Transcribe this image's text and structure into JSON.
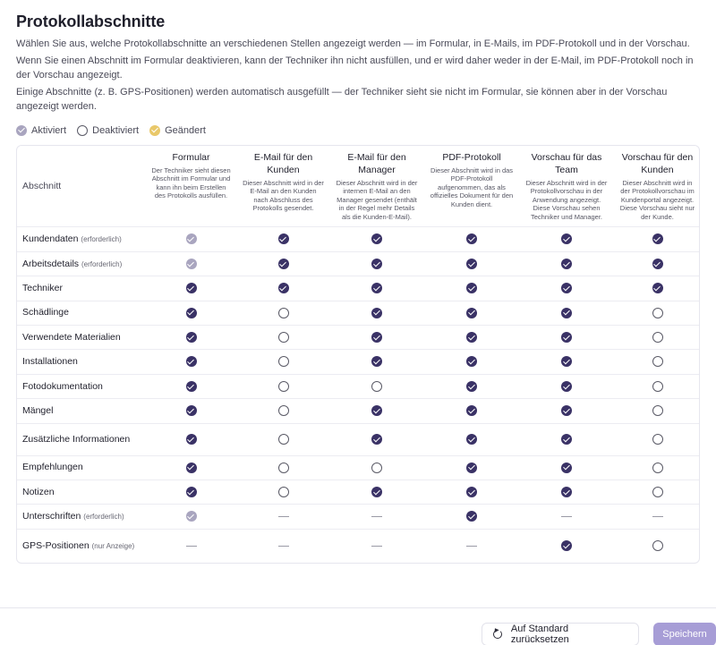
{
  "page": {
    "title": "Protokollabschnitte",
    "descriptions": [
      "Wählen Sie aus, welche Protokollabschnitte an verschiedenen Stellen angezeigt werden — im Formular, in E-Mails, im PDF-Protokoll und in der Vorschau.",
      "Wenn Sie einen Abschnitt im Formular deaktivieren, kann der Techniker ihn nicht ausfüllen, und er wird daher weder in der E-Mail, im PDF-Protokoll noch in der Vorschau angezeigt.",
      "Einige Abschnitte (z. B. GPS-Positionen) werden automatisch ausgefüllt — der Techniker sieht sie nicht im Formular, sie können aber in der Vorschau angezeigt werden."
    ]
  },
  "legend": {
    "active": "Aktiviert",
    "inactive": "Deaktiviert",
    "changed": "Geändert"
  },
  "table": {
    "section_header": "Abschnitt",
    "columns": [
      {
        "title": "Formular",
        "desc": "Der Techniker sieht diesen Abschnitt im Formular und kann ihn beim Erstellen des Protokolls ausfüllen."
      },
      {
        "title": "E-Mail für den Kunden",
        "desc": "Dieser Abschnitt wird in der E-Mail an den Kunden nach Abschluss des Protokolls gesendet."
      },
      {
        "title": "E-Mail für den Manager",
        "desc": "Dieser Abschnitt wird in der internen E-Mail an den Manager gesendet (enthält in der Regel mehr Details als die Kunden-E-Mail)."
      },
      {
        "title": "PDF-Protokoll",
        "desc": "Dieser Abschnitt wird in das PDF-Protokoll aufgenommen, das als offizielles Dokument für den Kunden dient."
      },
      {
        "title": "Vorschau für das Team",
        "desc": "Dieser Abschnitt wird in der Protokollvorschau in der Anwendung angezeigt. Diese Vorschau sehen Techniker und Manager."
      },
      {
        "title": "Vorschau für den Kunden",
        "desc": "Dieser Abschnitt wird in der Protokollvorschau im Kundenportal angezeigt. Diese Vorschau sieht nur der Kunde."
      }
    ],
    "rows": [
      {
        "label": "Kundendaten",
        "note": "(erforderlich)",
        "states": [
          "required",
          "active",
          "active",
          "active",
          "active",
          "active"
        ]
      },
      {
        "label": "Arbeitsdetails",
        "note": "(erforderlich)",
        "states": [
          "required",
          "active",
          "active",
          "active",
          "active",
          "active"
        ]
      },
      {
        "label": "Techniker",
        "note": "",
        "states": [
          "active",
          "active",
          "active",
          "active",
          "active",
          "active"
        ]
      },
      {
        "label": "Schädlinge",
        "note": "",
        "states": [
          "active",
          "off",
          "active",
          "active",
          "active",
          "off"
        ]
      },
      {
        "label": "Verwendete Materialien",
        "note": "",
        "states": [
          "active",
          "off",
          "active",
          "active",
          "active",
          "off"
        ]
      },
      {
        "label": "Installationen",
        "note": "",
        "states": [
          "active",
          "off",
          "active",
          "active",
          "active",
          "off"
        ]
      },
      {
        "label": "Fotodokumentation",
        "note": "",
        "states": [
          "active",
          "off",
          "off",
          "active",
          "active",
          "off"
        ]
      },
      {
        "label": "Mängel",
        "note": "",
        "states": [
          "active",
          "off",
          "active",
          "active",
          "active",
          "off"
        ]
      },
      {
        "label": "Zusätzliche Informationen",
        "note": "",
        "states": [
          "active",
          "off",
          "active",
          "active",
          "active",
          "off"
        ]
      },
      {
        "label": "Empfehlungen",
        "note": "",
        "states": [
          "active",
          "off",
          "off",
          "active",
          "active",
          "off"
        ]
      },
      {
        "label": "Notizen",
        "note": "",
        "states": [
          "active",
          "off",
          "active",
          "active",
          "active",
          "off"
        ]
      },
      {
        "label": "Unterschriften",
        "note": "(erforderlich)",
        "states": [
          "required",
          "none",
          "none",
          "active",
          "none",
          "none"
        ]
      },
      {
        "label": "GPS-Positionen",
        "note": "(nur Anzeige)",
        "states": [
          "none",
          "none",
          "none",
          "none",
          "active",
          "off"
        ]
      }
    ]
  },
  "buttons": {
    "reset": "Auf Standard zurücksetzen",
    "save": "Speichern"
  },
  "icons": {
    "active": "check-circle-filled-icon",
    "required": "check-circle-disabled-icon",
    "changed": "check-circle-yellow-icon",
    "off": "empty-circle-icon",
    "none": "dash-icon",
    "reset": "reset-icon"
  },
  "colors": {
    "active": "#3a3266",
    "required": "#a9a5bf",
    "changed": "#e9c86a",
    "save_button": "#a79dd6"
  }
}
